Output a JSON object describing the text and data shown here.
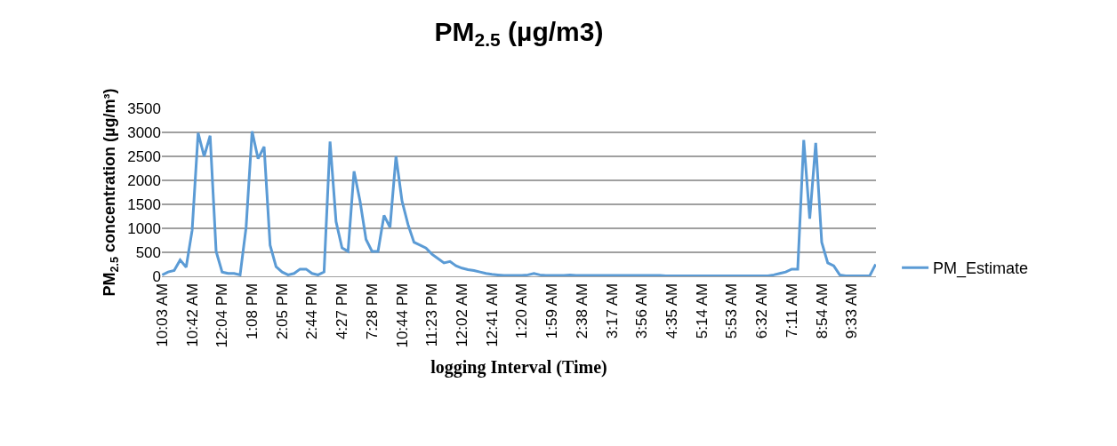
{
  "chart_data": {
    "type": "line",
    "title": "PM$_{2.5}$ (µg/m3)",
    "xlabel": "logging Interval (Time)",
    "ylabel": "PM$_{2.5}$ concentration (µg/m³)",
    "categories": [
      "10:03 AM",
      null,
      null,
      null,
      null,
      "10:42 AM",
      null,
      null,
      null,
      null,
      "12:04 PM",
      null,
      null,
      null,
      null,
      "1:08 PM",
      null,
      null,
      null,
      null,
      "2:05 PM",
      null,
      null,
      null,
      null,
      "2:44 PM",
      null,
      null,
      null,
      null,
      "4:27 PM",
      null,
      null,
      null,
      null,
      "7:28 PM",
      null,
      null,
      null,
      null,
      "10:44 PM",
      null,
      null,
      null,
      null,
      "11:23 PM",
      null,
      null,
      null,
      null,
      "12:02 AM",
      null,
      null,
      null,
      null,
      "12:41 AM",
      null,
      null,
      null,
      null,
      "1:20 AM",
      null,
      null,
      null,
      null,
      "1:59 AM",
      null,
      null,
      null,
      null,
      "2:38 AM",
      null,
      null,
      null,
      null,
      "3:17 AM",
      null,
      null,
      null,
      null,
      "3:56 AM",
      null,
      null,
      null,
      null,
      "4:35 AM",
      null,
      null,
      null,
      null,
      "5:14 AM",
      null,
      null,
      null,
      null,
      "5:53 AM",
      null,
      null,
      null,
      null,
      "6:32 AM",
      null,
      null,
      null,
      null,
      "7:11 AM",
      null,
      null,
      null,
      null,
      "8:54 AM",
      null,
      null,
      null,
      null,
      "9:33 AM",
      null,
      null,
      null,
      null
    ],
    "series": [
      {
        "name": "PM_Estimate",
        "color": "#5b9bd5",
        "values": [
          30,
          90,
          120,
          340,
          190,
          960,
          2990,
          2500,
          2930,
          520,
          90,
          60,
          60,
          30,
          1020,
          3020,
          2450,
          2700,
          650,
          200,
          90,
          30,
          60,
          150,
          150,
          60,
          30,
          90,
          2810,
          1140,
          590,
          520,
          2190,
          1570,
          770,
          520,
          520,
          1270,
          1020,
          2500,
          1570,
          1080,
          710,
          650,
          590,
          460,
          370,
          280,
          310,
          220,
          170,
          140,
          120,
          90,
          60,
          40,
          30,
          20,
          20,
          20,
          20,
          30,
          60,
          30,
          20,
          20,
          20,
          20,
          30,
          20,
          20,
          20,
          20,
          20,
          20,
          20,
          20,
          20,
          20,
          20,
          20,
          20,
          20,
          20,
          10,
          10,
          10,
          10,
          10,
          10,
          10,
          10,
          10,
          10,
          10,
          10,
          10,
          10,
          10,
          10,
          10,
          10,
          30,
          60,
          90,
          150,
          150,
          2840,
          1200,
          2780,
          710,
          280,
          220,
          30,
          10,
          10,
          10,
          10,
          10,
          250
        ]
      }
    ],
    "ylim": [
      0,
      3500
    ],
    "yticks": [
      0,
      500,
      1000,
      1500,
      2000,
      2500,
      3000,
      3500
    ],
    "grid": "y",
    "legend": "right",
    "line_style": "solid",
    "marker": "none"
  }
}
